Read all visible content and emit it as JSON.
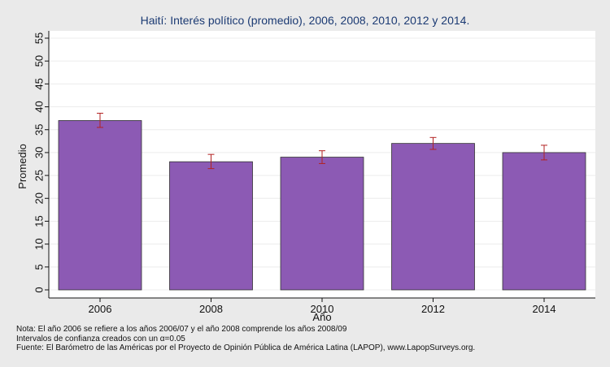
{
  "chart_data": {
    "type": "bar",
    "title": "Haití: Interés político (promedio), 2006, 2008, 2010, 2012 y 2014.",
    "xlabel": "Año",
    "ylabel": "Promedio",
    "categories": [
      "2006",
      "2008",
      "2010",
      "2012",
      "2014"
    ],
    "values": [
      37.0,
      28.0,
      29.0,
      32.0,
      30.0
    ],
    "ci_low": [
      35.5,
      26.5,
      27.6,
      30.7,
      28.4
    ],
    "ci_high": [
      38.6,
      29.6,
      30.4,
      33.3,
      31.6
    ],
    "ylim": [
      0,
      55
    ],
    "yticks": [
      0,
      5,
      10,
      15,
      20,
      25,
      30,
      35,
      40,
      45,
      50,
      55
    ],
    "grid": true,
    "legend": "none",
    "bar_color": "#8c5ab4",
    "errorbar_color": "#b22222"
  },
  "notes": [
    "Nota: El año 2006 se refiere a los años 2006/07 y el año 2008 comprende los años 2008/09",
    "Intervalos de confianza creados con un α=0.05",
    "Fuente: El Barómetro de las Américas por el Proyecto de Opinión Pública de América Latina (LAPOP), www.LapopSurveys.org."
  ]
}
